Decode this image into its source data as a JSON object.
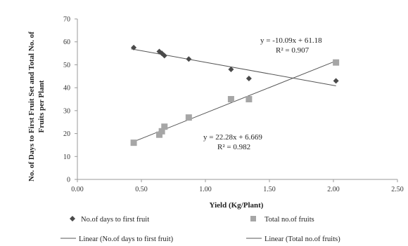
{
  "chart_data": {
    "type": "scatter",
    "xlabel": "Yield (Kg/Plant)",
    "ylabel_line1": "No. of  Days to First Fruit Set and Total  No. of",
    "ylabel_line2": "Fruits per Plant",
    "xlim": [
      0,
      2.5
    ],
    "ylim": [
      0,
      70
    ],
    "x_ticks": [
      "0.00",
      "0.50",
      "1.00",
      "1.50",
      "2.00",
      "2.50"
    ],
    "y_ticks": [
      "0",
      "10",
      "20",
      "30",
      "40",
      "50",
      "60",
      "70"
    ],
    "grid": false,
    "legend_position": "bottom",
    "series": [
      {
        "name": "No.of days to first fruit",
        "marker": "diamond",
        "color": "#4a4a4a",
        "points": [
          {
            "x": 0.44,
            "y": 57.5
          },
          {
            "x": 0.64,
            "y": 55.8
          },
          {
            "x": 0.66,
            "y": 55
          },
          {
            "x": 0.68,
            "y": 54
          },
          {
            "x": 0.87,
            "y": 52.5
          },
          {
            "x": 1.2,
            "y": 48
          },
          {
            "x": 1.34,
            "y": 44
          },
          {
            "x": 2.02,
            "y": 43
          }
        ]
      },
      {
        "name": "Total no.of fruits",
        "marker": "square",
        "color": "#a6a6a6",
        "points": [
          {
            "x": 0.44,
            "y": 16
          },
          {
            "x": 0.64,
            "y": 19.5
          },
          {
            "x": 0.66,
            "y": 21
          },
          {
            "x": 0.68,
            "y": 23
          },
          {
            "x": 0.87,
            "y": 27
          },
          {
            "x": 1.2,
            "y": 35
          },
          {
            "x": 1.34,
            "y": 35
          },
          {
            "x": 2.02,
            "y": 51
          }
        ]
      }
    ],
    "trendlines": [
      {
        "name": "Linear (No.of days to first fruit)",
        "slope": -10.09,
        "intercept": 61.18,
        "x_range": [
          0.42,
          2.02
        ],
        "equation": "y = -10.09x + 61.18",
        "r2": "R² = 0.907"
      },
      {
        "name": "Linear (Total no.of fruits)",
        "slope": 22.28,
        "intercept": 6.669,
        "x_range": [
          0.42,
          2.02
        ],
        "equation": "y = 22.28x + 6.669",
        "r2": "R² = 0.982"
      }
    ]
  }
}
